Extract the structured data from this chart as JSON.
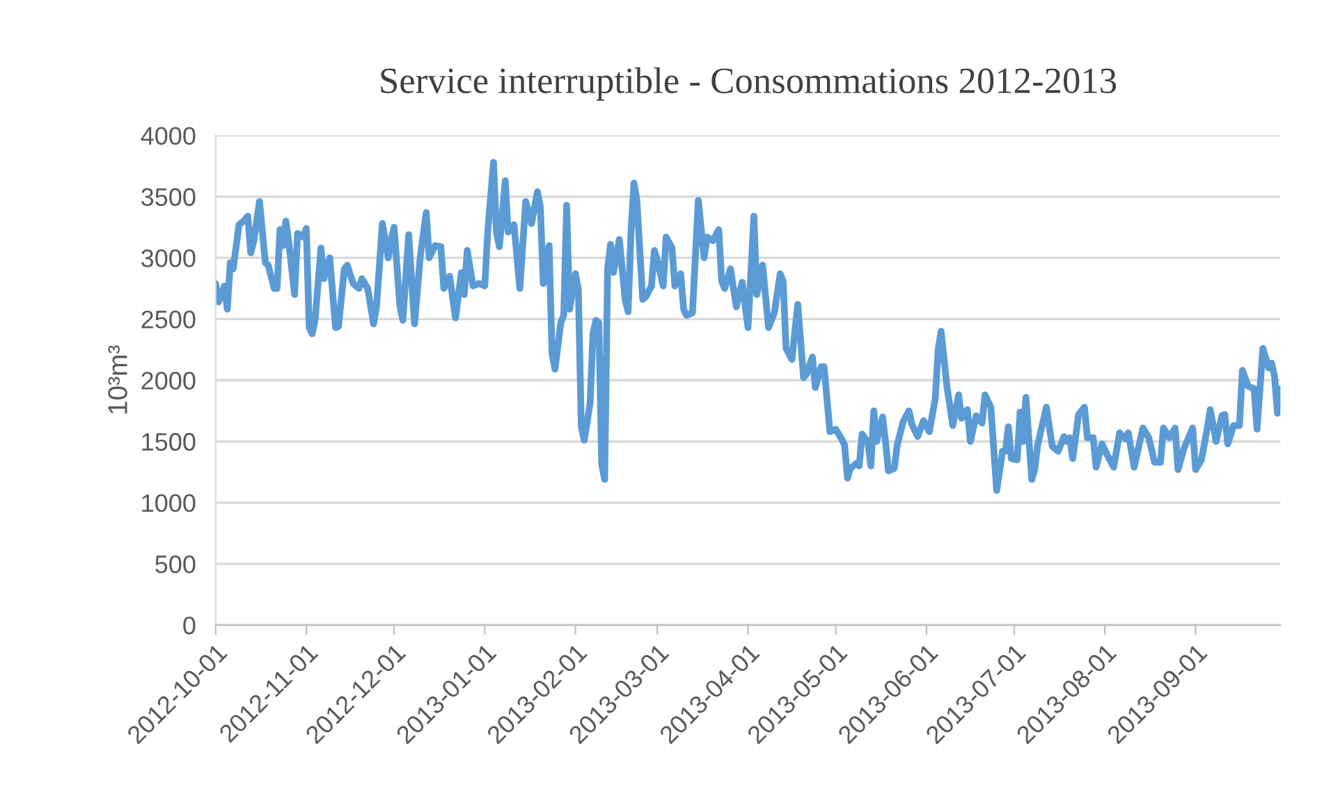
{
  "chart_data": {
    "type": "line",
    "title": "Service interruptible - Consommations 2012-2013",
    "ylabel": "10³m³",
    "x": [
      "2012-10-01",
      "2012-10-02",
      "2012-10-04",
      "2012-10-05",
      "2012-10-06",
      "2012-10-07",
      "2012-10-09",
      "2012-10-11",
      "2012-10-12",
      "2012-10-13",
      "2012-10-14",
      "2012-10-16",
      "2012-10-18",
      "2012-10-19",
      "2012-10-21",
      "2012-10-22",
      "2012-10-23",
      "2012-10-24",
      "2012-10-25",
      "2012-10-26",
      "2012-10-28",
      "2012-10-29",
      "2012-10-31",
      "2012-11-01",
      "2012-11-02",
      "2012-11-03",
      "2012-11-04",
      "2012-11-06",
      "2012-11-07",
      "2012-11-09",
      "2012-11-11",
      "2012-11-12",
      "2012-11-14",
      "2012-11-15",
      "2012-11-17",
      "2012-11-19",
      "2012-11-20",
      "2012-11-22",
      "2012-11-24",
      "2012-11-25",
      "2012-11-27",
      "2012-11-29",
      "2012-11-30",
      "2012-12-01",
      "2012-12-03",
      "2012-12-04",
      "2012-12-06",
      "2012-12-08",
      "2012-12-10",
      "2012-12-12",
      "2012-12-13",
      "2012-12-15",
      "2012-12-17",
      "2012-12-18",
      "2012-12-20",
      "2012-12-22",
      "2012-12-24",
      "2012-12-25",
      "2012-12-26",
      "2012-12-28",
      "2012-12-30",
      "2013-01-01",
      "2013-01-02",
      "2013-01-04",
      "2013-01-05",
      "2013-01-06",
      "2013-01-08",
      "2013-01-09",
      "2013-01-11",
      "2013-01-13",
      "2013-01-15",
      "2013-01-17",
      "2013-01-19",
      "2013-01-20",
      "2013-01-21",
      "2013-01-23",
      "2013-01-24",
      "2013-01-25",
      "2013-01-27",
      "2013-01-28",
      "2013-01-29",
      "2013-01-30",
      "2013-02-01",
      "2013-02-02",
      "2013-02-03",
      "2013-02-04",
      "2013-02-06",
      "2013-02-07",
      "2013-02-08",
      "2013-02-09",
      "2013-02-10",
      "2013-02-11",
      "2013-02-12",
      "2013-02-13",
      "2013-02-14",
      "2013-02-16",
      "2013-02-18",
      "2013-02-19",
      "2013-02-20",
      "2013-02-21",
      "2013-02-22",
      "2013-02-24",
      "2013-02-25",
      "2013-02-27",
      "2013-02-28",
      "2013-03-01",
      "2013-03-03",
      "2013-03-04",
      "2013-03-06",
      "2013-03-07",
      "2013-03-09",
      "2013-03-10",
      "2013-03-11",
      "2013-03-13",
      "2013-03-15",
      "2013-03-17",
      "2013-03-18",
      "2013-03-20",
      "2013-03-22",
      "2013-03-23",
      "2013-03-24",
      "2013-03-26",
      "2013-03-28",
      "2013-03-30",
      "2013-04-01",
      "2013-04-03",
      "2013-04-04",
      "2013-04-06",
      "2013-04-08",
      "2013-04-10",
      "2013-04-12",
      "2013-04-13",
      "2013-04-14",
      "2013-04-16",
      "2013-04-18",
      "2013-04-20",
      "2013-04-21",
      "2013-04-23",
      "2013-04-24",
      "2013-04-26",
      "2013-04-27",
      "2013-04-29",
      "2013-05-01",
      "2013-05-03",
      "2013-05-04",
      "2013-05-05",
      "2013-05-06",
      "2013-05-08",
      "2013-05-09",
      "2013-05-10",
      "2013-05-12",
      "2013-05-13",
      "2013-05-14",
      "2013-05-15",
      "2013-05-17",
      "2013-05-18",
      "2013-05-19",
      "2013-05-21",
      "2013-05-22",
      "2013-05-24",
      "2013-05-26",
      "2013-05-27",
      "2013-05-29",
      "2013-05-31",
      "2013-06-02",
      "2013-06-04",
      "2013-06-05",
      "2013-06-06",
      "2013-06-08",
      "2013-06-10",
      "2013-06-12",
      "2013-06-13",
      "2013-06-15",
      "2013-06-16",
      "2013-06-18",
      "2013-06-20",
      "2013-06-21",
      "2013-06-23",
      "2013-06-25",
      "2013-06-27",
      "2013-06-28",
      "2013-06-29",
      "2013-06-30",
      "2013-07-02",
      "2013-07-03",
      "2013-07-04",
      "2013-07-05",
      "2013-07-07",
      "2013-07-08",
      "2013-07-09",
      "2013-07-12",
      "2013-07-14",
      "2013-07-16",
      "2013-07-18",
      "2013-07-19",
      "2013-07-20",
      "2013-07-21",
      "2013-07-23",
      "2013-07-25",
      "2013-07-26",
      "2013-07-28",
      "2013-07-29",
      "2013-07-31",
      "2013-08-02",
      "2013-08-04",
      "2013-08-06",
      "2013-08-08",
      "2013-08-09",
      "2013-08-11",
      "2013-08-14",
      "2013-08-16",
      "2013-08-18",
      "2013-08-20",
      "2013-08-21",
      "2013-08-23",
      "2013-08-25",
      "2013-08-26",
      "2013-08-28",
      "2013-08-31",
      "2013-09-01",
      "2013-09-03",
      "2013-09-05",
      "2013-09-06",
      "2013-09-08",
      "2013-09-10",
      "2013-09-11",
      "2013-09-12",
      "2013-09-14",
      "2013-09-16",
      "2013-09-17",
      "2013-09-19",
      "2013-09-21",
      "2013-09-22",
      "2013-09-24",
      "2013-09-26",
      "2013-09-27",
      "2013-09-28",
      "2013-09-29",
      "2013-09-30"
    ],
    "series": [
      {
        "color": "#5b9bd5",
        "values": [
          2790,
          2640,
          2770,
          2580,
          2960,
          2910,
          3270,
          3310,
          3340,
          3040,
          3130,
          3460,
          2960,
          2940,
          2750,
          2750,
          3230,
          3100,
          3300,
          3130,
          2700,
          3200,
          3170,
          3240,
          2430,
          2380,
          2490,
          3080,
          2830,
          3000,
          2430,
          2440,
          2910,
          2940,
          2790,
          2750,
          2830,
          2750,
          2460,
          2600,
          3280,
          3000,
          3150,
          3250,
          2600,
          2490,
          3190,
          2460,
          3020,
          3370,
          3000,
          3100,
          3090,
          2750,
          2850,
          2510,
          2880,
          2700,
          3060,
          2770,
          2790,
          2770,
          3210,
          3780,
          3210,
          3090,
          3630,
          3210,
          3270,
          2750,
          3460,
          3280,
          3540,
          3420,
          2790,
          3100,
          2220,
          2090,
          2470,
          2530,
          3430,
          2580,
          2870,
          2740,
          1620,
          1510,
          1810,
          2380,
          2490,
          2470,
          1310,
          1190,
          2910,
          3110,
          2880,
          3150,
          2660,
          2560,
          3210,
          3610,
          3470,
          2660,
          2680,
          2770,
          3060,
          2980,
          2770,
          3170,
          3080,
          2770,
          2870,
          2580,
          2530,
          2550,
          3470,
          3000,
          3170,
          3140,
          3230,
          2810,
          2750,
          2910,
          2600,
          2800,
          2430,
          3340,
          2700,
          2940,
          2430,
          2550,
          2870,
          2810,
          2260,
          2170,
          2620,
          2020,
          2050,
          2190,
          1940,
          2110,
          2110,
          1580,
          1600,
          1520,
          1470,
          1200,
          1280,
          1320,
          1300,
          1560,
          1490,
          1300,
          1750,
          1500,
          1700,
          1500,
          1260,
          1280,
          1470,
          1660,
          1750,
          1640,
          1540,
          1670,
          1580,
          1850,
          2250,
          2400,
          1950,
          1630,
          1880,
          1690,
          1760,
          1500,
          1710,
          1650,
          1880,
          1780,
          1100,
          1420,
          1420,
          1620,
          1360,
          1350,
          1740,
          1500,
          1860,
          1190,
          1270,
          1470,
          1780,
          1460,
          1420,
          1540,
          1500,
          1530,
          1360,
          1720,
          1780,
          1530,
          1530,
          1290,
          1480,
          1380,
          1290,
          1570,
          1520,
          1570,
          1290,
          1610,
          1530,
          1330,
          1330,
          1610,
          1530,
          1610,
          1270,
          1440,
          1610,
          1270,
          1350,
          1610,
          1760,
          1500,
          1710,
          1720,
          1480,
          1630,
          1630,
          2080,
          1950,
          1930,
          1600,
          2260,
          2100,
          2140,
          2030,
          1730,
          1930
        ]
      }
    ],
    "xlim": [
      "2012-10-01",
      "2013-09-30"
    ],
    "xticks": [
      "2012-10-01",
      "2012-11-01",
      "2012-12-01",
      "2013-01-01",
      "2013-02-01",
      "2013-03-01",
      "2013-04-01",
      "2013-05-01",
      "2013-06-01",
      "2013-07-01",
      "2013-08-01",
      "2013-09-01"
    ],
    "ylim": [
      0,
      4000
    ],
    "yticks": [
      0,
      500,
      1000,
      1500,
      2000,
      2500,
      3000,
      3500,
      4000
    ],
    "grid": "y",
    "marker": "none",
    "line_style": "solid",
    "legend": false
  }
}
